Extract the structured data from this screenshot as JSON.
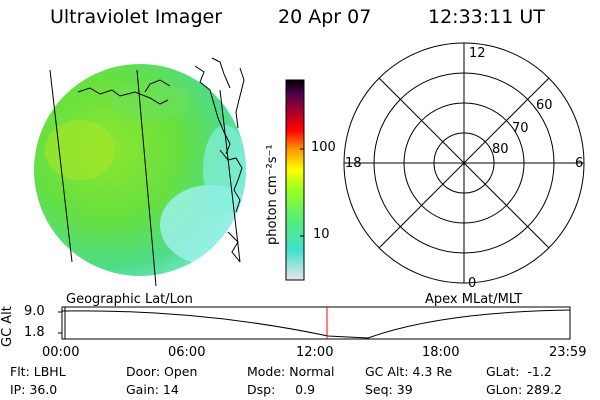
{
  "header": {
    "instrument": "Ultraviolet Imager",
    "date": "20 Apr 07",
    "time": "12:33:11 UT"
  },
  "colorbar": {
    "unit_label": "photon cm⁻²s⁻¹",
    "ticks": [
      "100",
      "10"
    ],
    "colors": [
      "#e8e8e8",
      "#40e0d0",
      "#66ff33",
      "#ffff00",
      "#ff9900",
      "#ff0000",
      "#a00020",
      "#400040",
      "#000000"
    ]
  },
  "panels": {
    "left_label": "Geographic Lat/Lon",
    "right_label": "Apex MLat/MLT"
  },
  "polar": {
    "mlt_labels": [
      "12",
      "18",
      "6",
      "0"
    ],
    "lat_labels": [
      "60",
      "70",
      "80"
    ]
  },
  "altitude_plot": {
    "ylabel": "GC Alt",
    "y_ticks": [
      "9.0",
      "1.8"
    ],
    "x_ticks": [
      "00:00",
      "06:00",
      "12:00",
      "18:00",
      "23:59"
    ],
    "current_time_marker": "12:33",
    "marker_color": "#ff0000"
  },
  "info": {
    "row1": {
      "flt": "Flt: LBHL",
      "door": "Door: Open",
      "mode": "Mode: Normal",
      "gc_alt": "GC Alt: 4.3 Re",
      "glat": "GLat:  -1.2"
    },
    "row2": {
      "ip": "IP: 36.0",
      "gain": "Gain: 14",
      "dsp": "Dsp:     0.9",
      "seq": "Seq: 39",
      "glon": "GLon: 289.2"
    }
  }
}
